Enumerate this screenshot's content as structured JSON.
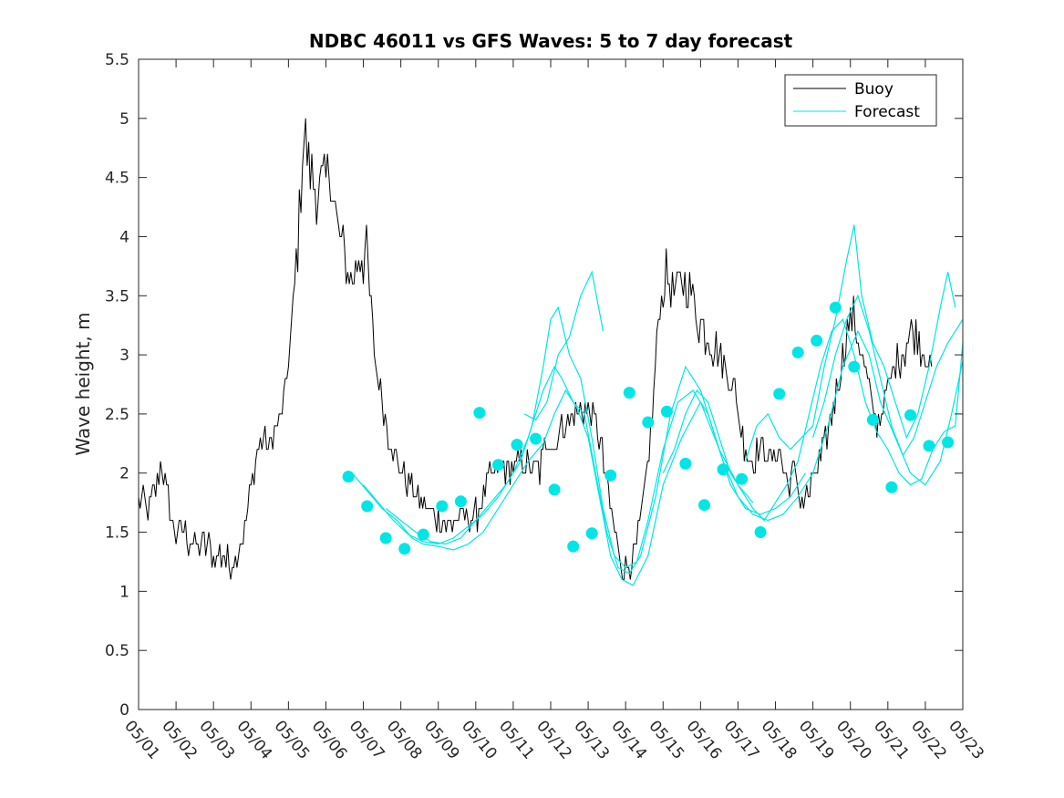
{
  "colors": {
    "buoy": "#000000",
    "forecast": "#00e5e5",
    "axis": "#262626",
    "background": "#ffffff"
  },
  "chart_data": {
    "type": "line",
    "title": "NDBC 46011 vs GFS Waves: 5 to 7 day forecast",
    "xlabel": "",
    "ylabel": "Wave height, m",
    "xlim": [
      0,
      22
    ],
    "ylim": [
      0,
      5.5
    ],
    "x_units": "days since 05/01",
    "x_tick_labels": [
      "05/01",
      "05/02",
      "05/03",
      "05/04",
      "05/05",
      "05/06",
      "05/07",
      "05/08",
      "05/09",
      "05/10",
      "05/11",
      "05/12",
      "05/13",
      "05/14",
      "05/15",
      "05/16",
      "05/17",
      "05/18",
      "05/19",
      "05/20",
      "05/21",
      "05/22",
      "05/23"
    ],
    "y_ticks": [
      0,
      0.5,
      1,
      1.5,
      2,
      2.5,
      3,
      3.5,
      4,
      4.5,
      5,
      5.5
    ],
    "y_tick_labels": [
      "0",
      "0.5",
      "1",
      "1.5",
      "2",
      "2.5",
      "3",
      "3.5",
      "4",
      "4.5",
      "5",
      "5.5"
    ],
    "grid": false,
    "legend": {
      "position": "top-right",
      "entries": [
        {
          "label": "Buoy",
          "series": "buoy"
        },
        {
          "label": "Forecast",
          "series": "forecast"
        }
      ]
    },
    "buoy_envelope": {
      "name": "Buoy",
      "x": [
        0,
        0.2,
        0.4,
        0.5,
        0.6,
        0.7,
        0.9,
        1.0,
        1.2,
        1.4,
        1.6,
        1.8,
        2.0,
        2.2,
        2.4,
        2.6,
        2.8,
        3.0,
        3.1,
        3.3,
        3.5,
        3.7,
        3.9,
        4.1,
        4.3,
        4.4,
        4.6,
        4.8,
        5.0,
        5.1,
        5.3,
        5.5,
        5.7,
        5.9,
        6.1,
        6.3,
        6.5,
        6.7,
        6.9,
        7.1,
        7.3,
        7.5,
        7.7,
        7.9,
        8.1,
        8.3,
        8.5,
        8.7,
        8.9,
        9.1,
        9.3,
        9.5,
        9.7,
        9.9,
        10.1,
        10.3,
        10.5,
        10.7,
        10.9,
        11.1,
        11.3,
        11.5,
        11.7,
        11.9,
        12.1,
        12.3,
        12.5,
        12.7,
        12.9,
        13.1,
        13.3,
        13.5,
        13.7,
        13.9,
        14.1,
        14.3,
        14.5,
        14.7,
        14.9,
        15.1,
        15.3,
        15.5,
        15.7,
        15.9,
        16.1,
        16.3,
        16.5,
        16.7,
        16.9,
        17.1,
        17.3,
        17.5,
        17.7,
        17.9,
        18.1,
        18.3,
        18.5,
        18.7,
        18.9,
        19.1,
        19.3,
        19.5,
        19.7,
        19.9,
        20.1,
        20.3,
        20.5,
        20.7,
        20.9,
        21.1,
        21.2
      ],
      "y": [
        1.8,
        1.7,
        1.8,
        1.9,
        2.1,
        1.9,
        1.6,
        1.5,
        1.5,
        1.4,
        1.35,
        1.4,
        1.3,
        1.3,
        1.25,
        1.3,
        1.5,
        1.9,
        2.1,
        2.3,
        2.2,
        2.4,
        2.6,
        3.3,
        4.2,
        4.9,
        4.5,
        4.4,
        4.4,
        4.6,
        4.1,
        3.8,
        3.6,
        3.9,
        3.8,
        3.0,
        2.6,
        2.3,
        2.1,
        2.0,
        1.85,
        1.8,
        1.7,
        1.65,
        1.6,
        1.55,
        1.6,
        1.65,
        1.6,
        1.7,
        1.9,
        2.0,
        2.05,
        2.0,
        2.05,
        2.1,
        2.0,
        2.0,
        2.3,
        2.2,
        2.4,
        2.45,
        2.5,
        2.55,
        2.5,
        2.3,
        1.9,
        1.5,
        1.25,
        1.2,
        1.4,
        1.8,
        2.4,
        3.4,
        3.7,
        3.5,
        3.6,
        3.6,
        3.3,
        3.2,
        3.1,
        3.0,
        2.85,
        2.7,
        2.35,
        2.1,
        2.15,
        2.2,
        2.1,
        2.2,
        1.9,
        2.0,
        1.75,
        1.85,
        2.0,
        2.2,
        2.5,
        2.8,
        3.2,
        3.3,
        3.0,
        2.7,
        2.4,
        2.6,
        2.8,
        3.0,
        3.1,
        3.2,
        3.1,
        2.9,
        2.8
      ]
    },
    "buoy_noise": 0.13,
    "forecast_series": [
      {
        "x": [
          5.7,
          6.1,
          6.5,
          6.9,
          7.3,
          7.6,
          8.0,
          8.4,
          8.8,
          9.2,
          9.6,
          10.0,
          10.4,
          10.8,
          11.1,
          11.4,
          11.7,
          12.0,
          12.3,
          12.6,
          12.9,
          13.2,
          13.6,
          14.0,
          14.5,
          15.0,
          15.5,
          16.0,
          16.4
        ],
        "y": [
          2.0,
          1.85,
          1.7,
          1.6,
          1.45,
          1.4,
          1.38,
          1.35,
          1.4,
          1.5,
          1.7,
          1.9,
          2.1,
          2.25,
          2.5,
          2.7,
          2.55,
          2.3,
          1.8,
          1.3,
          1.1,
          1.05,
          1.3,
          1.9,
          2.3,
          2.6,
          2.2,
          1.9,
          1.75
        ]
      },
      {
        "x": [
          6.0,
          6.4,
          6.8,
          7.2,
          7.6,
          8.0,
          8.4,
          8.8,
          9.2,
          9.6,
          10.0,
          10.4,
          10.8,
          11.1,
          11.3,
          11.6,
          11.9,
          12.2,
          12.5,
          12.8,
          13.1,
          13.4,
          13.8,
          14.2,
          14.6,
          15.0,
          15.4,
          15.8,
          16.2,
          16.6,
          17.0,
          17.4,
          17.8
        ],
        "y": [
          1.9,
          1.75,
          1.6,
          1.48,
          1.42,
          1.4,
          1.45,
          1.55,
          1.65,
          1.8,
          2.0,
          2.3,
          2.7,
          2.9,
          2.8,
          2.6,
          2.5,
          2.0,
          1.5,
          1.2,
          1.15,
          1.3,
          1.8,
          2.5,
          2.9,
          2.7,
          2.3,
          1.9,
          1.7,
          1.65,
          1.7,
          1.8,
          2.0
        ]
      },
      {
        "x": [
          6.6,
          7.0,
          7.4,
          7.8,
          8.2,
          8.6,
          9.0,
          9.4,
          9.8,
          10.2,
          10.5,
          10.8,
          11.0,
          11.2,
          11.5,
          11.8,
          12.1,
          12.4,
          12.7,
          13.0,
          13.3,
          13.6,
          14.0,
          14.4,
          14.8,
          15.2,
          15.6,
          16.0,
          16.4,
          16.8,
          17.2,
          17.6,
          18.0,
          18.4,
          18.8,
          19.2,
          19.5,
          19.8,
          20.2,
          20.6,
          21.0,
          21.4,
          21.7,
          22.0
        ],
        "y": [
          1.7,
          1.6,
          1.5,
          1.42,
          1.4,
          1.45,
          1.6,
          1.75,
          1.9,
          2.1,
          2.4,
          2.9,
          3.3,
          3.4,
          3.0,
          2.8,
          2.3,
          1.7,
          1.3,
          1.2,
          1.25,
          1.6,
          2.2,
          2.6,
          2.7,
          2.5,
          2.1,
          1.8,
          1.65,
          1.6,
          1.65,
          1.8,
          2.0,
          2.4,
          2.9,
          3.2,
          3.0,
          2.6,
          2.3,
          2.0,
          1.9,
          2.1,
          2.5,
          2.95
        ]
      },
      {
        "x": [
          10.3,
          10.6,
          10.9,
          11.2,
          11.5,
          11.8,
          12.1,
          12.4
        ],
        "y": [
          2.5,
          2.45,
          2.6,
          3.0,
          3.15,
          3.5,
          3.7,
          3.2
        ]
      },
      {
        "x": [
          14.0,
          14.3,
          14.6,
          14.9,
          15.2,
          15.5,
          15.8,
          16.1,
          16.4,
          16.7,
          17.0,
          17.3,
          17.6,
          17.9,
          18.2,
          18.5,
          18.8,
          19.1,
          19.4,
          19.7,
          20.0,
          20.3,
          20.6,
          20.9,
          21.2,
          21.5,
          21.8,
          22.0
        ],
        "y": [
          2.0,
          2.2,
          2.5,
          2.7,
          2.6,
          2.3,
          2.0,
          1.85,
          1.7,
          1.6,
          1.75,
          1.9,
          2.1,
          2.5,
          2.9,
          3.2,
          3.3,
          3.0,
          2.6,
          2.35,
          2.2,
          2.0,
          1.9,
          1.95,
          2.2,
          2.35,
          2.4,
          3.1
        ]
      },
      {
        "x": [
          16.2,
          16.5,
          16.8,
          17.1,
          17.4,
          17.7,
          18.0,
          18.3,
          18.6,
          18.9,
          19.1,
          19.3,
          19.6,
          19.9,
          20.2,
          20.5,
          20.8,
          21.1,
          21.4,
          21.6,
          21.8
        ],
        "y": [
          2.1,
          2.4,
          2.5,
          2.3,
          2.2,
          2.3,
          2.4,
          2.9,
          3.3,
          3.8,
          4.1,
          3.5,
          3.1,
          2.9,
          2.6,
          2.3,
          2.5,
          2.9,
          3.4,
          3.7,
          3.4
        ]
      },
      {
        "x": [
          18.0,
          18.3,
          18.6,
          18.9,
          19.2,
          19.5,
          19.8,
          20.1,
          20.4,
          20.7,
          21.0,
          21.3,
          21.6,
          21.9,
          22.0
        ],
        "y": [
          2.3,
          2.6,
          3.0,
          3.3,
          3.5,
          3.2,
          2.8,
          2.4,
          2.15,
          2.3,
          2.6,
          2.9,
          3.1,
          3.25,
          3.3
        ]
      }
    ],
    "forecast_markers": {
      "x": [
        5.6,
        6.1,
        6.6,
        7.1,
        7.6,
        8.1,
        8.6,
        9.1,
        9.6,
        10.1,
        10.6,
        11.1,
        11.6,
        12.1,
        12.6,
        13.1,
        13.6,
        14.1,
        14.6,
        15.1,
        15.6,
        16.1,
        16.6,
        17.1,
        17.6,
        18.1,
        18.6,
        19.1,
        19.6,
        20.1,
        20.6,
        21.1,
        21.6
      ],
      "y": [
        1.97,
        1.72,
        1.45,
        1.36,
        1.48,
        1.72,
        1.76,
        2.51,
        2.07,
        2.24,
        2.29,
        1.86,
        1.38,
        1.49,
        1.98,
        2.68,
        2.43,
        2.52,
        2.08,
        1.73,
        2.03,
        1.95,
        1.5,
        2.67,
        3.02,
        3.12,
        3.4,
        2.9,
        2.45,
        1.88,
        2.49,
        2.23,
        2.26
      ]
    }
  }
}
